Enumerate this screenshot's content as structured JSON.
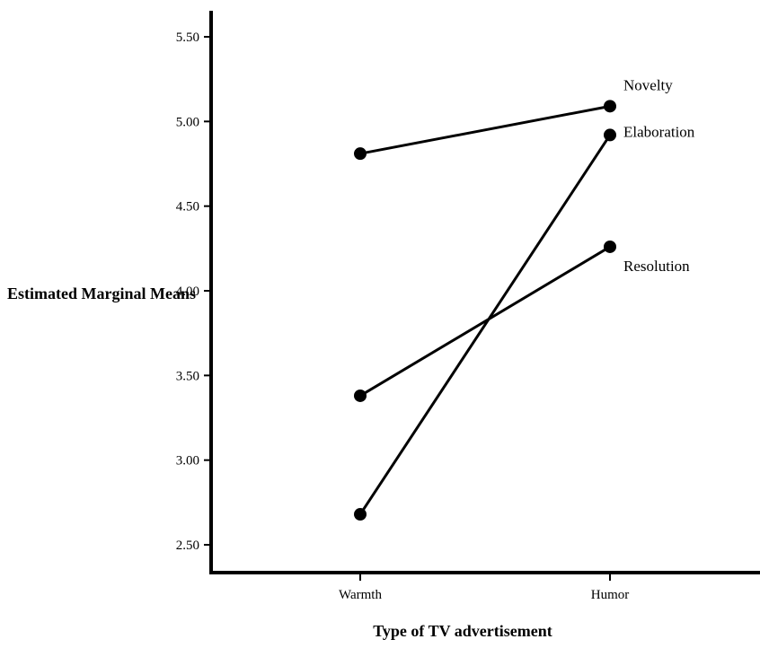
{
  "chart_data": {
    "type": "line",
    "title": "",
    "xlabel": "Type of TV advertisement",
    "ylabel": "Estimated Marginal Means",
    "categories": [
      "Warmth",
      "Humor"
    ],
    "ylim": [
      2.5,
      5.5
    ],
    "yticks": [
      "2.50",
      "3.00",
      "3.50",
      "4.00",
      "4.50",
      "5.00",
      "5.50"
    ],
    "grid": false,
    "series": [
      {
        "name": "Novelty",
        "values": [
          4.81,
          5.09
        ]
      },
      {
        "name": "Elaboration",
        "values": [
          2.68,
          4.92
        ]
      },
      {
        "name": "Resolution",
        "values": [
          3.38,
          4.26
        ]
      }
    ]
  }
}
